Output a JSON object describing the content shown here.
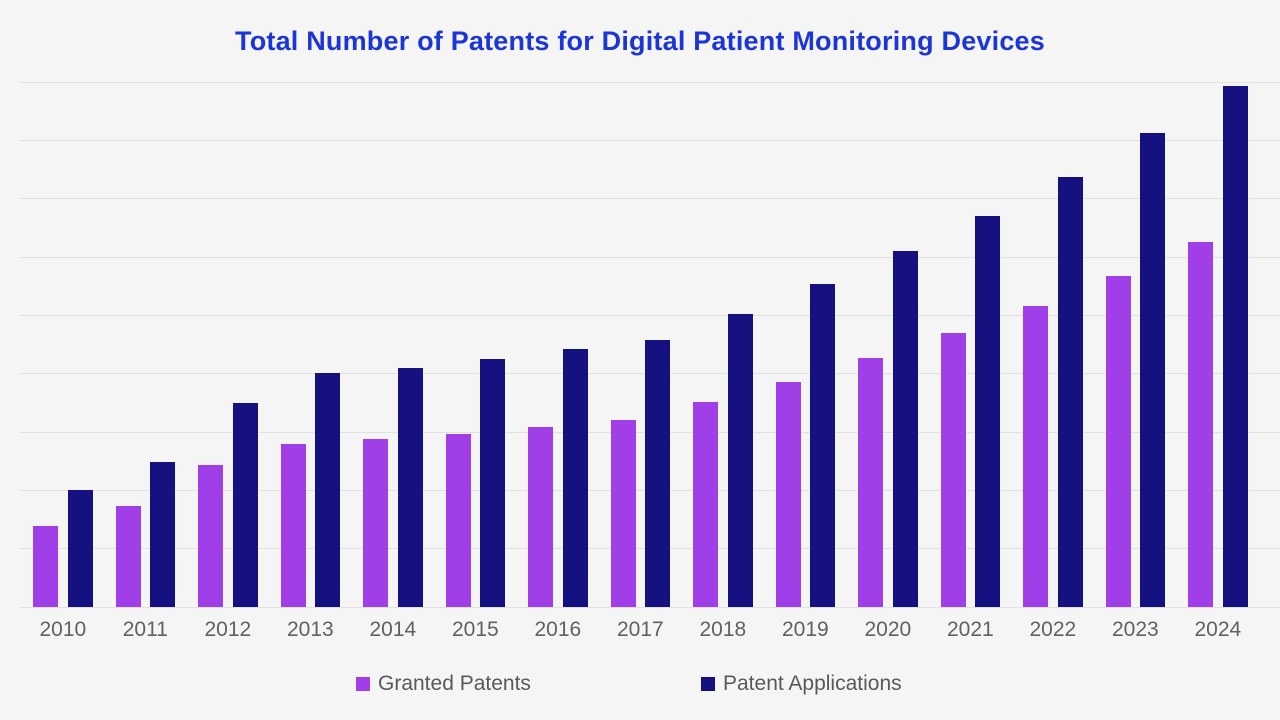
{
  "page": {
    "background": "#f5f5f6"
  },
  "header": {
    "title": "Total Number of Patents for Digital Patient Monitoring Devices",
    "title_color": "#1c35d6"
  },
  "legend": {
    "items": [
      {
        "label": "Granted Patents",
        "color": "#a03ee8"
      },
      {
        "label": "Patent Applications",
        "color": "#151181"
      }
    ]
  },
  "chart_data": {
    "type": "bar",
    "title": "Total Number of Patents for Digital Patient Monitoring Devices",
    "categories": [
      "2010",
      "2011",
      "2012",
      "2013",
      "2014",
      "2015",
      "2016",
      "2017",
      "2018",
      "2019",
      "2020",
      "2021",
      "2022",
      "2023",
      "2024"
    ],
    "series": [
      {
        "name": "Granted Patents",
        "color": "#a03ee8",
        "values": [
          139,
          174,
          244,
          279,
          288,
          297,
          309,
          320,
          352,
          386,
          427,
          469,
          516,
          567,
          626
        ]
      },
      {
        "name": "Patent Applications",
        "color": "#151181",
        "values": [
          200,
          249,
          350,
          401,
          409,
          426,
          442,
          457,
          503,
          554,
          610,
          670,
          738,
          812,
          893
        ]
      }
    ],
    "xlabel": "",
    "ylabel": "",
    "ylim": [
      0,
      900
    ],
    "gridline_step": 100,
    "grid": true,
    "y_axis_labels_visible": false,
    "legend_position": "bottom",
    "x_tick_color": "#616161",
    "gridline_color": "#e1e1e3"
  }
}
